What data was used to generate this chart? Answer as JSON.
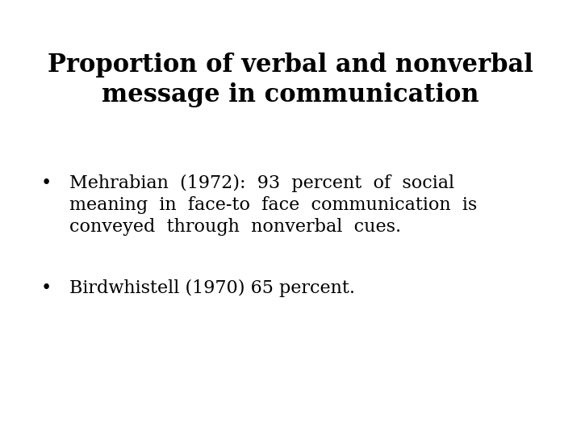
{
  "title_line1": "Proportion of verbal and nonverbal",
  "title_line2": "message in communication",
  "bullet1_line1": "Mehrabian  (1972):  93  percent  of  social",
  "bullet1_line2": "meaning  in  face-to  face  communication  is",
  "bullet1_line3": "conveyed  through  nonverbal  cues.",
  "bullet2": "Birdwhistell (1970) 65 percent.",
  "background_color": "#ffffff",
  "text_color": "#000000",
  "title_fontsize": 22,
  "body_fontsize": 16,
  "bullet_char": "•"
}
